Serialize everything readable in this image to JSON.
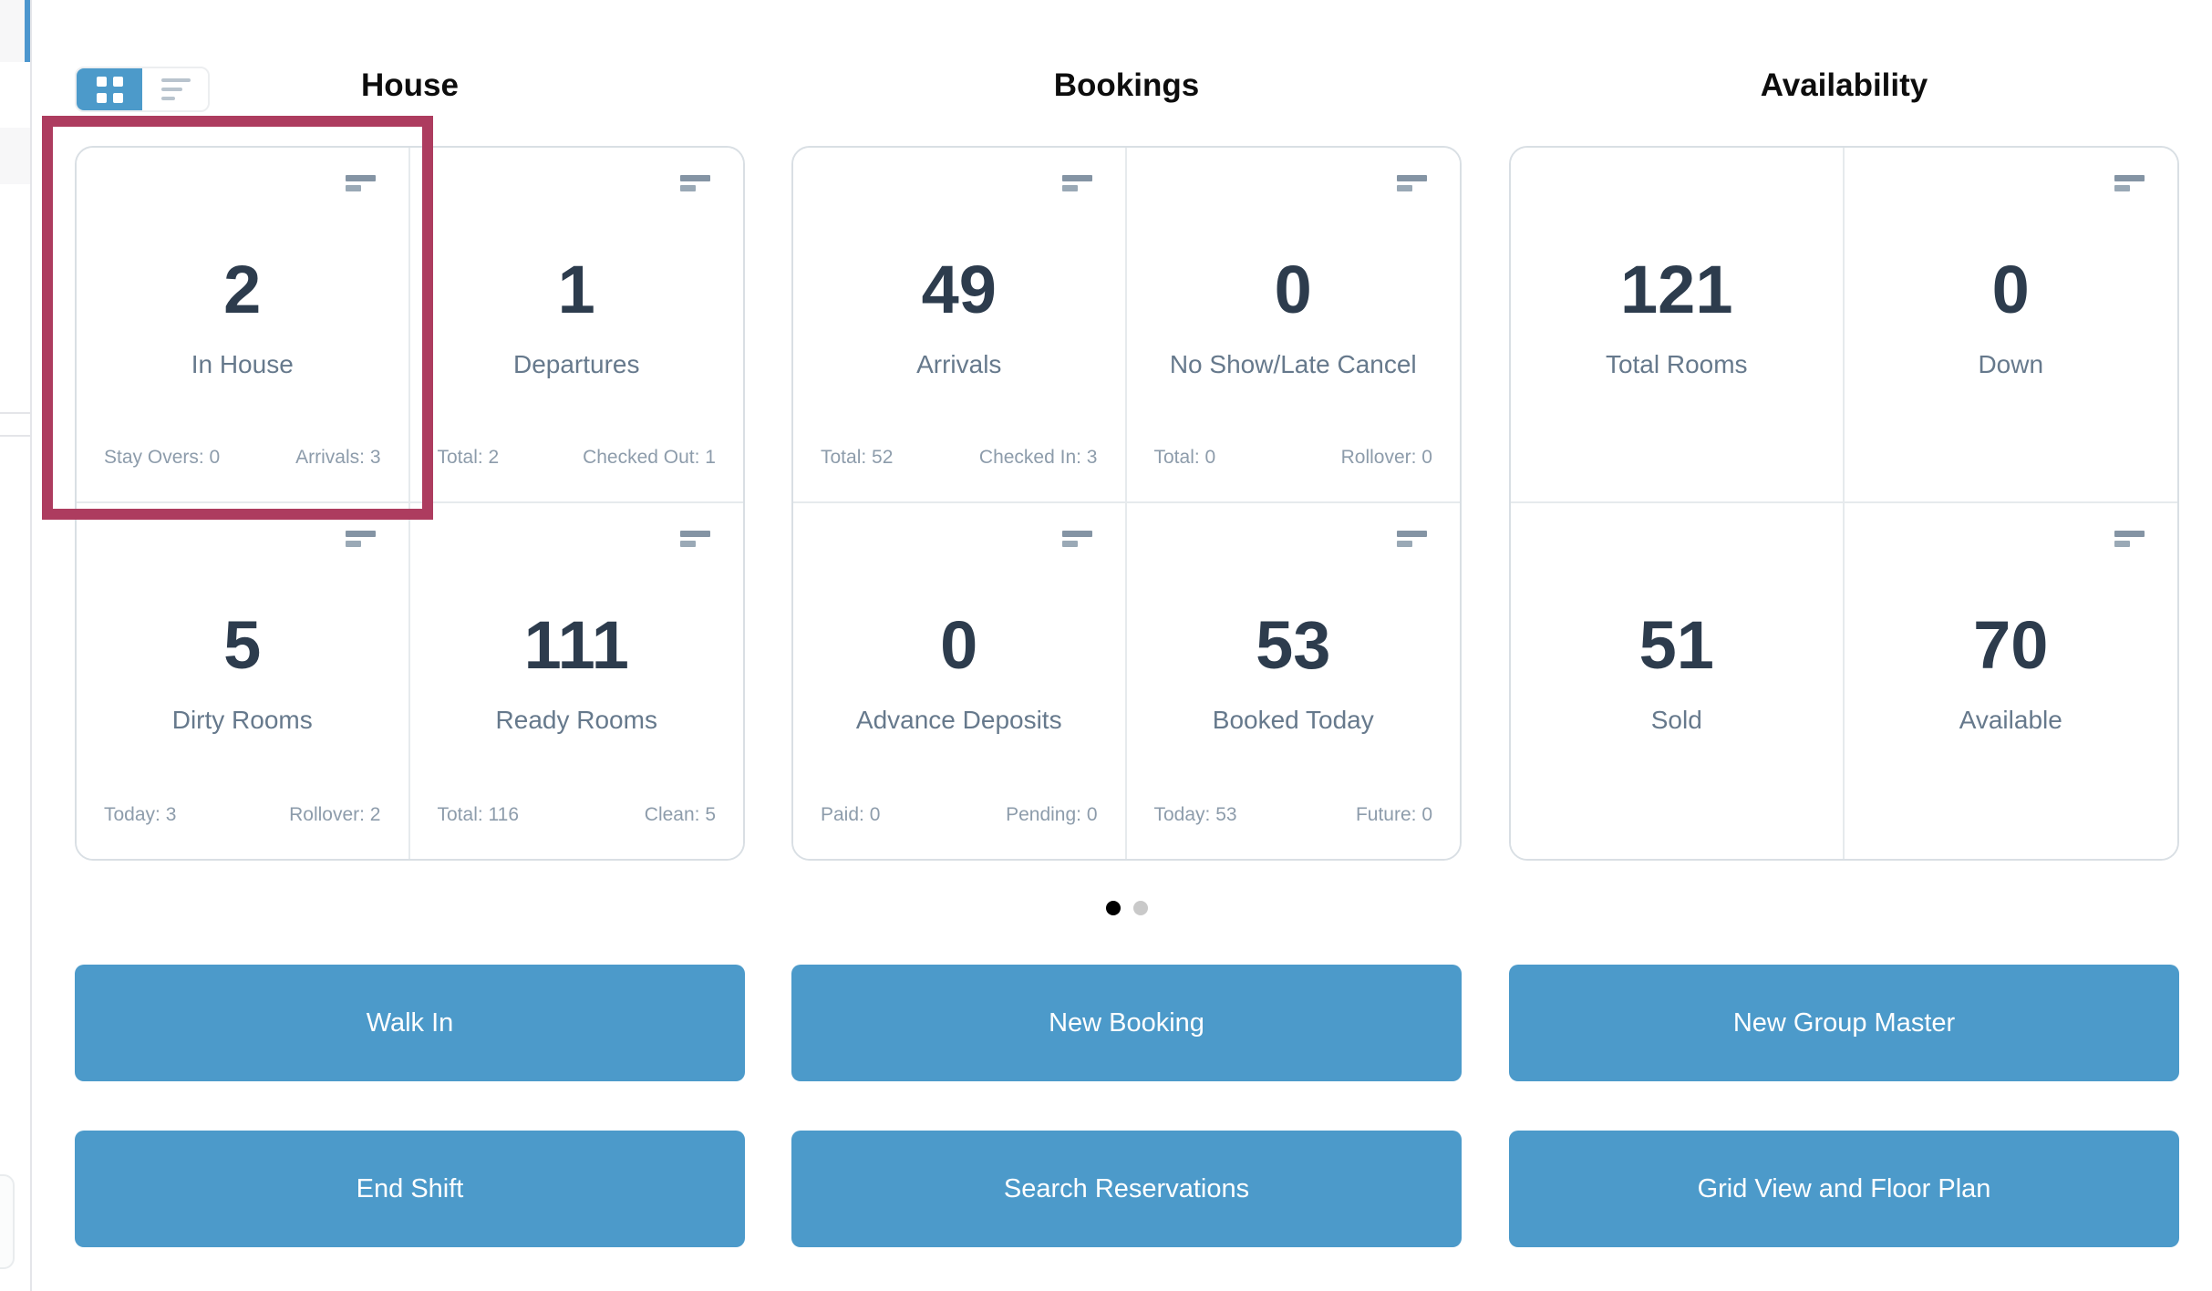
{
  "colors": {
    "accent_blue": "#4c9aca",
    "highlight_box": "#ad3c5f",
    "number_text": "#2d3c4d",
    "label_text": "#66798c",
    "substat_text": "#8d9cab"
  },
  "view_toggle": {
    "active": "grid",
    "options": [
      "grid-view",
      "list-view"
    ]
  },
  "sections": [
    {
      "title": "House",
      "cards": [
        {
          "value": "2",
          "label": "In House",
          "stat_left": "Stay Overs: 0",
          "stat_right": "Arrivals: 3",
          "highlighted": true
        },
        {
          "value": "1",
          "label": "Departures",
          "stat_left": "Total: 2",
          "stat_right": "Checked Out: 1"
        },
        {
          "value": "5",
          "label": "Dirty Rooms",
          "stat_left": "Today: 3",
          "stat_right": "Rollover: 2"
        },
        {
          "value": "111",
          "label": "Ready Rooms",
          "stat_left": "Total: 116",
          "stat_right": "Clean: 5"
        }
      ]
    },
    {
      "title": "Bookings",
      "cards": [
        {
          "value": "49",
          "label": "Arrivals",
          "stat_left": "Total: 52",
          "stat_right": "Checked In: 3"
        },
        {
          "value": "0",
          "label": "No Show/Late Cancel",
          "stat_left": "Total: 0",
          "stat_right": "Rollover: 0"
        },
        {
          "value": "0",
          "label": "Advance Deposits",
          "stat_left": "Paid: 0",
          "stat_right": "Pending: 0"
        },
        {
          "value": "53",
          "label": "Booked Today",
          "stat_left": "Today: 53",
          "stat_right": "Future: 0"
        }
      ]
    },
    {
      "title": "Availability",
      "cards": [
        {
          "value": "121",
          "label": "Total Rooms"
        },
        {
          "value": "0",
          "label": "Down"
        },
        {
          "value": "51",
          "label": "Sold"
        },
        {
          "value": "70",
          "label": "Available"
        }
      ]
    }
  ],
  "pagination": {
    "pages": 2,
    "active_page": 1
  },
  "action_buttons": [
    {
      "label": "Walk In"
    },
    {
      "label": "New Booking"
    },
    {
      "label": "New Group Master"
    },
    {
      "label": "End Shift"
    },
    {
      "label": "Search Reservations"
    },
    {
      "label": "Grid View and Floor Plan"
    }
  ]
}
